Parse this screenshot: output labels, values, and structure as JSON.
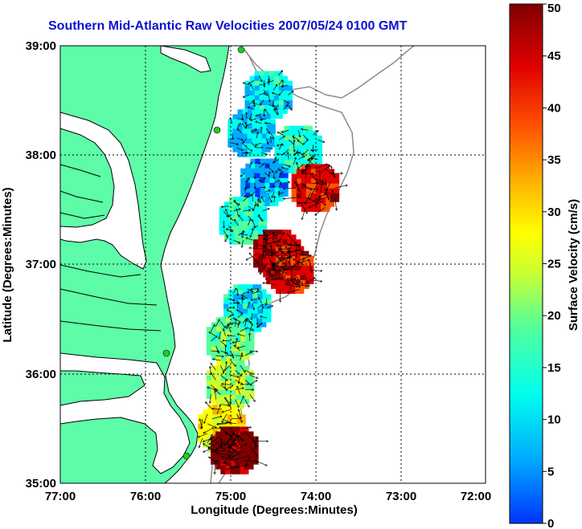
{
  "title": "Southern Mid-Atlantic Raw Velocities 2007/05/24 0100 GMT",
  "x_axis": {
    "label": "Longitude (Degrees:Minutes)",
    "ticks": [
      "77:00",
      "76:00",
      "75:00",
      "74:00",
      "73:00",
      "72:00"
    ]
  },
  "y_axis": {
    "label": "Latitude (Degrees:Minutes)",
    "ticks": [
      "39:00",
      "38:00",
      "37:00",
      "36:00",
      "35:00"
    ]
  },
  "colorbar": {
    "label": "Surface Velocity (cm/s)",
    "ticks": [
      "50",
      "45",
      "40",
      "35",
      "30",
      "25",
      "20",
      "15",
      "10",
      "5",
      "0"
    ],
    "min": 0,
    "max": 50,
    "colormap": [
      "#0033ff",
      "#00a8ff",
      "#00ffee",
      "#55ff99",
      "#c8ff33",
      "#ffff00",
      "#ffb000",
      "#ff5500",
      "#e00000",
      "#800000"
    ]
  },
  "colors": {
    "land": "#5dfca8",
    "water": "#ffffff",
    "coastline": "#000000",
    "bathymetry": "#8c8c8c",
    "grid": "#000000",
    "station": "#22cc22"
  },
  "chart_data": {
    "type": "heatmap",
    "title": "Southern Mid-Atlantic Raw Velocities 2007/05/24 0100 GMT",
    "xlabel": "Longitude (Degrees:Minutes)",
    "ylabel": "Latitude (Degrees:Minutes)",
    "xlim": [
      -77.0,
      -72.0
    ],
    "ylim": [
      35.0,
      39.0
    ],
    "grid": true,
    "colorbar_label": "Surface Velocity (cm/s)",
    "colorbar_range": [
      0,
      50
    ],
    "regions": [
      {
        "lon": -74.55,
        "lat": 38.55,
        "speed": 12
      },
      {
        "lon": -74.75,
        "lat": 38.2,
        "speed": 10
      },
      {
        "lon": -74.2,
        "lat": 38.05,
        "speed": 14
      },
      {
        "lon": -74.0,
        "lat": 37.7,
        "speed": 42
      },
      {
        "lon": -74.6,
        "lat": 37.75,
        "speed": 8
      },
      {
        "lon": -74.85,
        "lat": 37.4,
        "speed": 15
      },
      {
        "lon": -74.45,
        "lat": 37.1,
        "speed": 45
      },
      {
        "lon": -74.3,
        "lat": 36.95,
        "speed": 42
      },
      {
        "lon": -74.8,
        "lat": 36.6,
        "speed": 12
      },
      {
        "lon": -75.0,
        "lat": 36.3,
        "speed": 18
      },
      {
        "lon": -75.0,
        "lat": 35.9,
        "speed": 22
      },
      {
        "lon": -75.1,
        "lat": 35.5,
        "speed": 28
      },
      {
        "lon": -74.95,
        "lat": 35.3,
        "speed": 48
      }
    ]
  }
}
